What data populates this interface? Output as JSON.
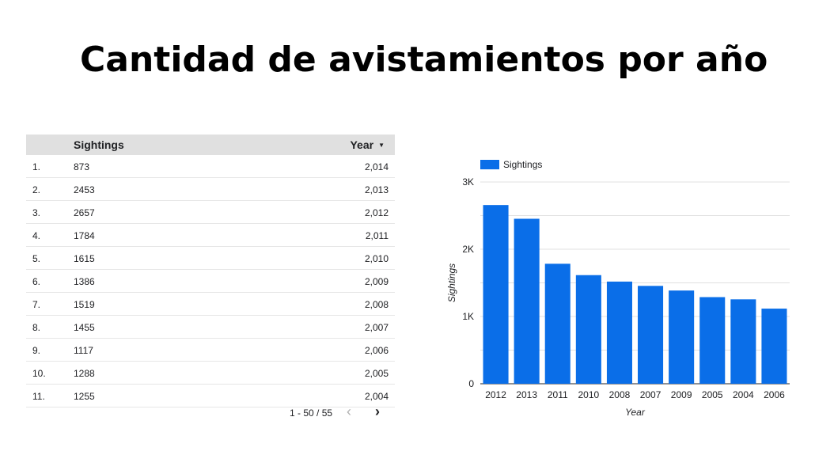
{
  "title": "Cantidad de avistamientos por año",
  "table": {
    "headers": {
      "sightings": "Sightings",
      "year": "Year"
    },
    "sort_icon": "sort-desc-icon",
    "rows": [
      {
        "idx": "1.",
        "sightings": "873",
        "year": "2,014"
      },
      {
        "idx": "2.",
        "sightings": "2453",
        "year": "2,013"
      },
      {
        "idx": "3.",
        "sightings": "2657",
        "year": "2,012"
      },
      {
        "idx": "4.",
        "sightings": "1784",
        "year": "2,011"
      },
      {
        "idx": "5.",
        "sightings": "1615",
        "year": "2,010"
      },
      {
        "idx": "6.",
        "sightings": "1386",
        "year": "2,009"
      },
      {
        "idx": "7.",
        "sightings": "1519",
        "year": "2,008"
      },
      {
        "idx": "8.",
        "sightings": "1455",
        "year": "2,007"
      },
      {
        "idx": "9.",
        "sightings": "1117",
        "year": "2,006"
      },
      {
        "idx": "10.",
        "sightings": "1288",
        "year": "2,005"
      },
      {
        "idx": "11.",
        "sightings": "1255",
        "year": "2,004"
      }
    ],
    "pager": {
      "range": "1 - 50 / 55",
      "prev": "‹",
      "next": "›"
    }
  },
  "chart_data": {
    "type": "bar",
    "categories": [
      "2012",
      "2013",
      "2011",
      "2010",
      "2008",
      "2007",
      "2009",
      "2005",
      "2004",
      "2006"
    ],
    "series": [
      {
        "name": "Sightings",
        "values": [
          2657,
          2453,
          1784,
          1615,
          1519,
          1455,
          1386,
          1288,
          1255,
          1117
        ]
      }
    ],
    "xlabel": "Year",
    "ylabel": "Sightings",
    "ylim": [
      0,
      3000
    ],
    "yticks": [
      {
        "value": 0,
        "label": "0"
      },
      {
        "value": 1000,
        "label": "1K"
      },
      {
        "value": 2000,
        "label": "2K"
      },
      {
        "value": 3000,
        "label": "3K"
      }
    ],
    "grid": true,
    "legend": "top-left",
    "color": "#0a6ee8"
  }
}
